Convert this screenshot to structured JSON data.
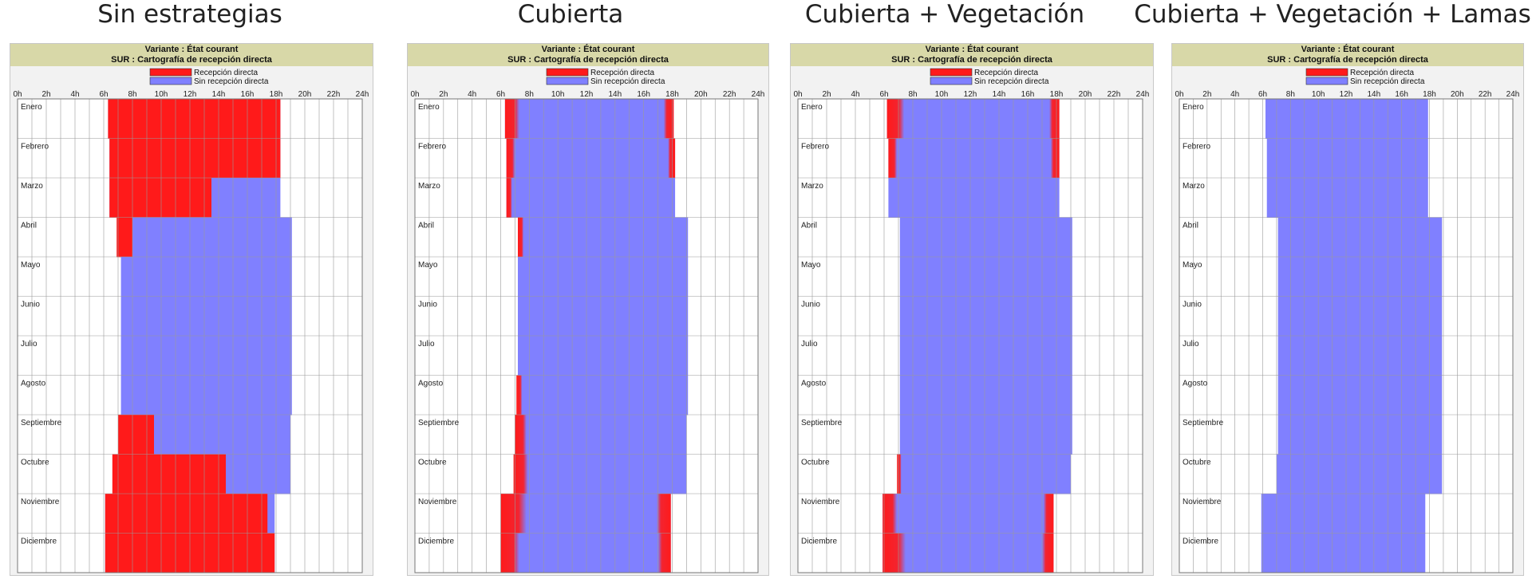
{
  "chart_data": [
    {
      "type": "heatmap",
      "title": "Sin estrategias",
      "header_line1": "Variante : État courant",
      "header_line2": "SUR : Cartografía de recepción directa",
      "legend": [
        {
          "label": "Recepción directa",
          "color": "#ff1a1a"
        },
        {
          "label": "Sin recepción directa",
          "color": "#8080ff"
        }
      ],
      "x_ticks": [
        "0h",
        "2h",
        "4h",
        "6h",
        "8h",
        "10h",
        "12h",
        "14h",
        "16h",
        "18h",
        "20h",
        "22h",
        "24h"
      ],
      "xlim": [
        0,
        24
      ],
      "months": [
        "Enero",
        "Febrero",
        "Marzo",
        "Abril",
        "Mayo",
        "Junio",
        "Julio",
        "Agosto",
        "Septiembre",
        "Octubre",
        "Noviembre",
        "Diciembre"
      ],
      "daylight_hours": [
        [
          6.3,
          18.3
        ],
        [
          6.4,
          18.3
        ],
        [
          6.4,
          18.3
        ],
        [
          7.2,
          19.1
        ],
        [
          7.2,
          19.1
        ],
        [
          7.2,
          19.1
        ],
        [
          7.2,
          19.1
        ],
        [
          7.2,
          19.1
        ],
        [
          7.2,
          19.0
        ],
        [
          7.2,
          19.0
        ],
        [
          6.1,
          17.9
        ],
        [
          6.1,
          17.9
        ]
      ],
      "direct_hours": [
        [
          6.3,
          18.3
        ],
        [
          6.4,
          18.3
        ],
        [
          6.4,
          13.5
        ],
        [
          6.9,
          8.0
        ],
        null,
        null,
        null,
        null,
        [
          7.0,
          9.5
        ],
        [
          6.6,
          14.5
        ],
        [
          6.1,
          17.4
        ],
        [
          6.1,
          17.9
        ]
      ]
    },
    {
      "type": "heatmap",
      "title": "Cubierta",
      "header_line1": "Variante : État courant",
      "header_line2": "SUR : Cartografía de recepción directa",
      "legend": [
        {
          "label": "Recepción directa",
          "color": "#ff1a1a"
        },
        {
          "label": "Sin recepción directa",
          "color": "#8080ff"
        }
      ],
      "x_ticks": [
        "0h",
        "2h",
        "4h",
        "6h",
        "8h",
        "10h",
        "12h",
        "14h",
        "16h",
        "18h",
        "20h",
        "22h",
        "24h"
      ],
      "xlim": [
        0,
        24
      ],
      "months": [
        "Enero",
        "Febrero",
        "Marzo",
        "Abril",
        "Mayo",
        "Junio",
        "Julio",
        "Agosto",
        "Septiembre",
        "Octubre",
        "Noviembre",
        "Diciembre"
      ],
      "daylight_hours": [
        [
          6.3,
          18.1
        ],
        [
          6.4,
          18.2
        ],
        [
          6.4,
          18.2
        ],
        [
          7.2,
          19.1
        ],
        [
          7.2,
          19.1
        ],
        [
          7.2,
          19.1
        ],
        [
          7.2,
          19.1
        ],
        [
          7.2,
          19.1
        ],
        [
          7.1,
          19.0
        ],
        [
          7.0,
          19.0
        ],
        [
          6.0,
          17.9
        ],
        [
          6.0,
          17.9
        ]
      ],
      "direct_hours": [
        [
          6.3,
          7.3
        ],
        [
          6.4,
          7.0
        ],
        [
          6.4,
          6.8
        ],
        [
          7.2,
          7.6
        ],
        null,
        null,
        null,
        [
          7.1,
          7.5
        ],
        [
          7.0,
          7.8
        ],
        [
          6.9,
          7.9
        ],
        [
          6.0,
          7.8
        ],
        [
          6.0,
          7.3
        ]
      ],
      "direct_hours_end": [
        [
          17.4,
          18.1
        ],
        [
          17.7,
          18.2
        ],
        null,
        null,
        null,
        null,
        null,
        null,
        null,
        null,
        [
          16.9,
          17.9
        ],
        [
          17.0,
          17.9
        ]
      ]
    },
    {
      "type": "heatmap",
      "title": "Cubierta + Vegetación",
      "header_line1": "Variante : État courant",
      "header_line2": "SUR : Cartografía de recepción directa",
      "legend": [
        {
          "label": "Recepción directa",
          "color": "#ff1a1a"
        },
        {
          "label": "Sin recepción directa",
          "color": "#8080ff"
        }
      ],
      "x_ticks": [
        "0h",
        "2h",
        "4h",
        "6h",
        "8h",
        "10h",
        "12h",
        "14h",
        "16h",
        "18h",
        "20h",
        "22h",
        "24h"
      ],
      "xlim": [
        0,
        24
      ],
      "months": [
        "Enero",
        "Febrero",
        "Marzo",
        "Abril",
        "Mayo",
        "Junio",
        "Julio",
        "Agosto",
        "Septiembre",
        "Octubre",
        "Noviembre",
        "Diciembre"
      ],
      "daylight_hours": [
        [
          6.2,
          18.2
        ],
        [
          6.3,
          18.2
        ],
        [
          6.3,
          18.2
        ],
        [
          7.1,
          19.1
        ],
        [
          7.1,
          19.1
        ],
        [
          7.1,
          19.1
        ],
        [
          7.1,
          19.1
        ],
        [
          7.1,
          19.1
        ],
        [
          7.1,
          19.1
        ],
        [
          7.0,
          19.0
        ],
        [
          5.9,
          17.8
        ],
        [
          5.9,
          17.8
        ]
      ],
      "direct_hours": [
        [
          6.2,
          7.4
        ],
        [
          6.3,
          6.9
        ],
        null,
        null,
        null,
        null,
        null,
        null,
        null,
        [
          6.9,
          7.2
        ],
        [
          5.9,
          6.9
        ],
        [
          5.9,
          7.5
        ]
      ],
      "direct_hours_end": [
        [
          17.5,
          18.2
        ],
        [
          17.6,
          18.2
        ],
        null,
        null,
        null,
        null,
        null,
        null,
        null,
        null,
        [
          17.1,
          17.8
        ],
        [
          17.0,
          17.8
        ]
      ]
    },
    {
      "type": "heatmap",
      "title": "Cubierta + Vegetación + Lamas",
      "header_line1": "Variante : État courant",
      "header_line2": "SUR : Cartografía de recepción directa",
      "legend": [
        {
          "label": "Recepción directa",
          "color": "#ff1a1a"
        },
        {
          "label": "Sin recepción directa",
          "color": "#8080ff"
        }
      ],
      "x_ticks": [
        "0h",
        "2h",
        "4h",
        "6h",
        "8h",
        "10h",
        "12h",
        "14h",
        "16h",
        "18h",
        "20h",
        "22h",
        "24h"
      ],
      "xlim": [
        0,
        24
      ],
      "months": [
        "Enero",
        "Febrero",
        "Marzo",
        "Abril",
        "Mayo",
        "Junio",
        "Julio",
        "Agosto",
        "Septiembre",
        "Octubre",
        "Noviembre",
        "Diciembre"
      ],
      "daylight_hours": [
        [
          6.2,
          17.9
        ],
        [
          6.3,
          17.9
        ],
        [
          6.3,
          17.9
        ],
        [
          7.1,
          18.9
        ],
        [
          7.1,
          18.9
        ],
        [
          7.1,
          18.9
        ],
        [
          7.1,
          18.9
        ],
        [
          7.1,
          18.9
        ],
        [
          7.1,
          18.9
        ],
        [
          7.0,
          18.9
        ],
        [
          5.9,
          17.7
        ],
        [
          5.9,
          17.7
        ]
      ],
      "direct_hours": [
        null,
        null,
        null,
        null,
        null,
        null,
        null,
        null,
        null,
        null,
        null,
        null
      ]
    }
  ]
}
